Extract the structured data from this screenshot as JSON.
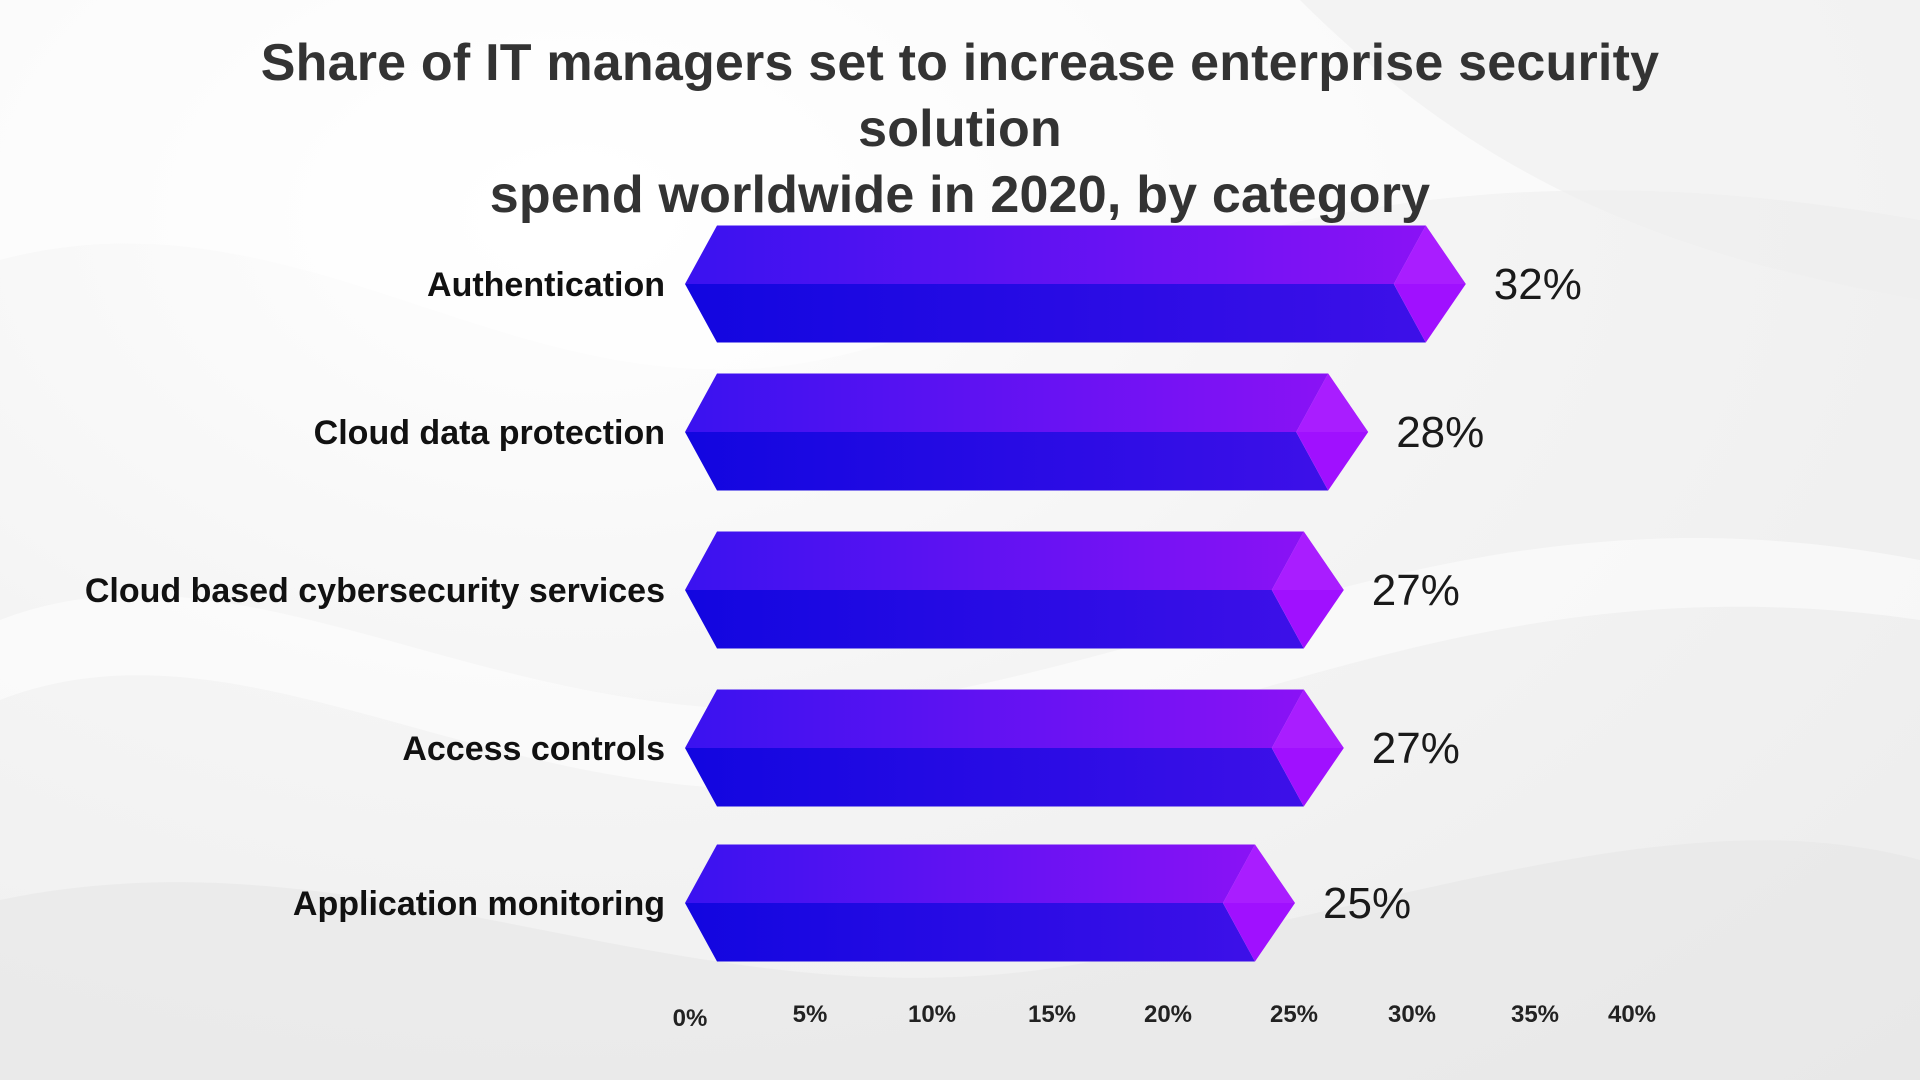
{
  "title_lines": [
    "Share of IT managers set to increase enterprise security solution",
    "spend worldwide in 2020, by category"
  ],
  "colors": {
    "bar_left": "#1a0ae6",
    "bar_right_top": "#8a12f5",
    "bar_right_bottom": "#3d10e8",
    "bar_cap": "#a010ff"
  },
  "chart_data": {
    "type": "bar",
    "orientation": "horizontal",
    "title": "Share of IT managers set to increase enterprise security solution spend worldwide in 2020, by category",
    "categories": [
      "Authentication",
      "Cloud data protection",
      "Cloud based cybersecurity services",
      "Access controls",
      "Application monitoring"
    ],
    "values": [
      32,
      28,
      27,
      27,
      25
    ],
    "value_labels": [
      "32%",
      "28%",
      "27%",
      "27%",
      "25%"
    ],
    "xlim": [
      0,
      40
    ],
    "x_ticks": [
      "0%",
      "5%",
      "10%",
      "15%",
      "20%",
      "25%",
      "30%",
      "35%",
      "40%"
    ],
    "grid": false,
    "legend": "none"
  }
}
